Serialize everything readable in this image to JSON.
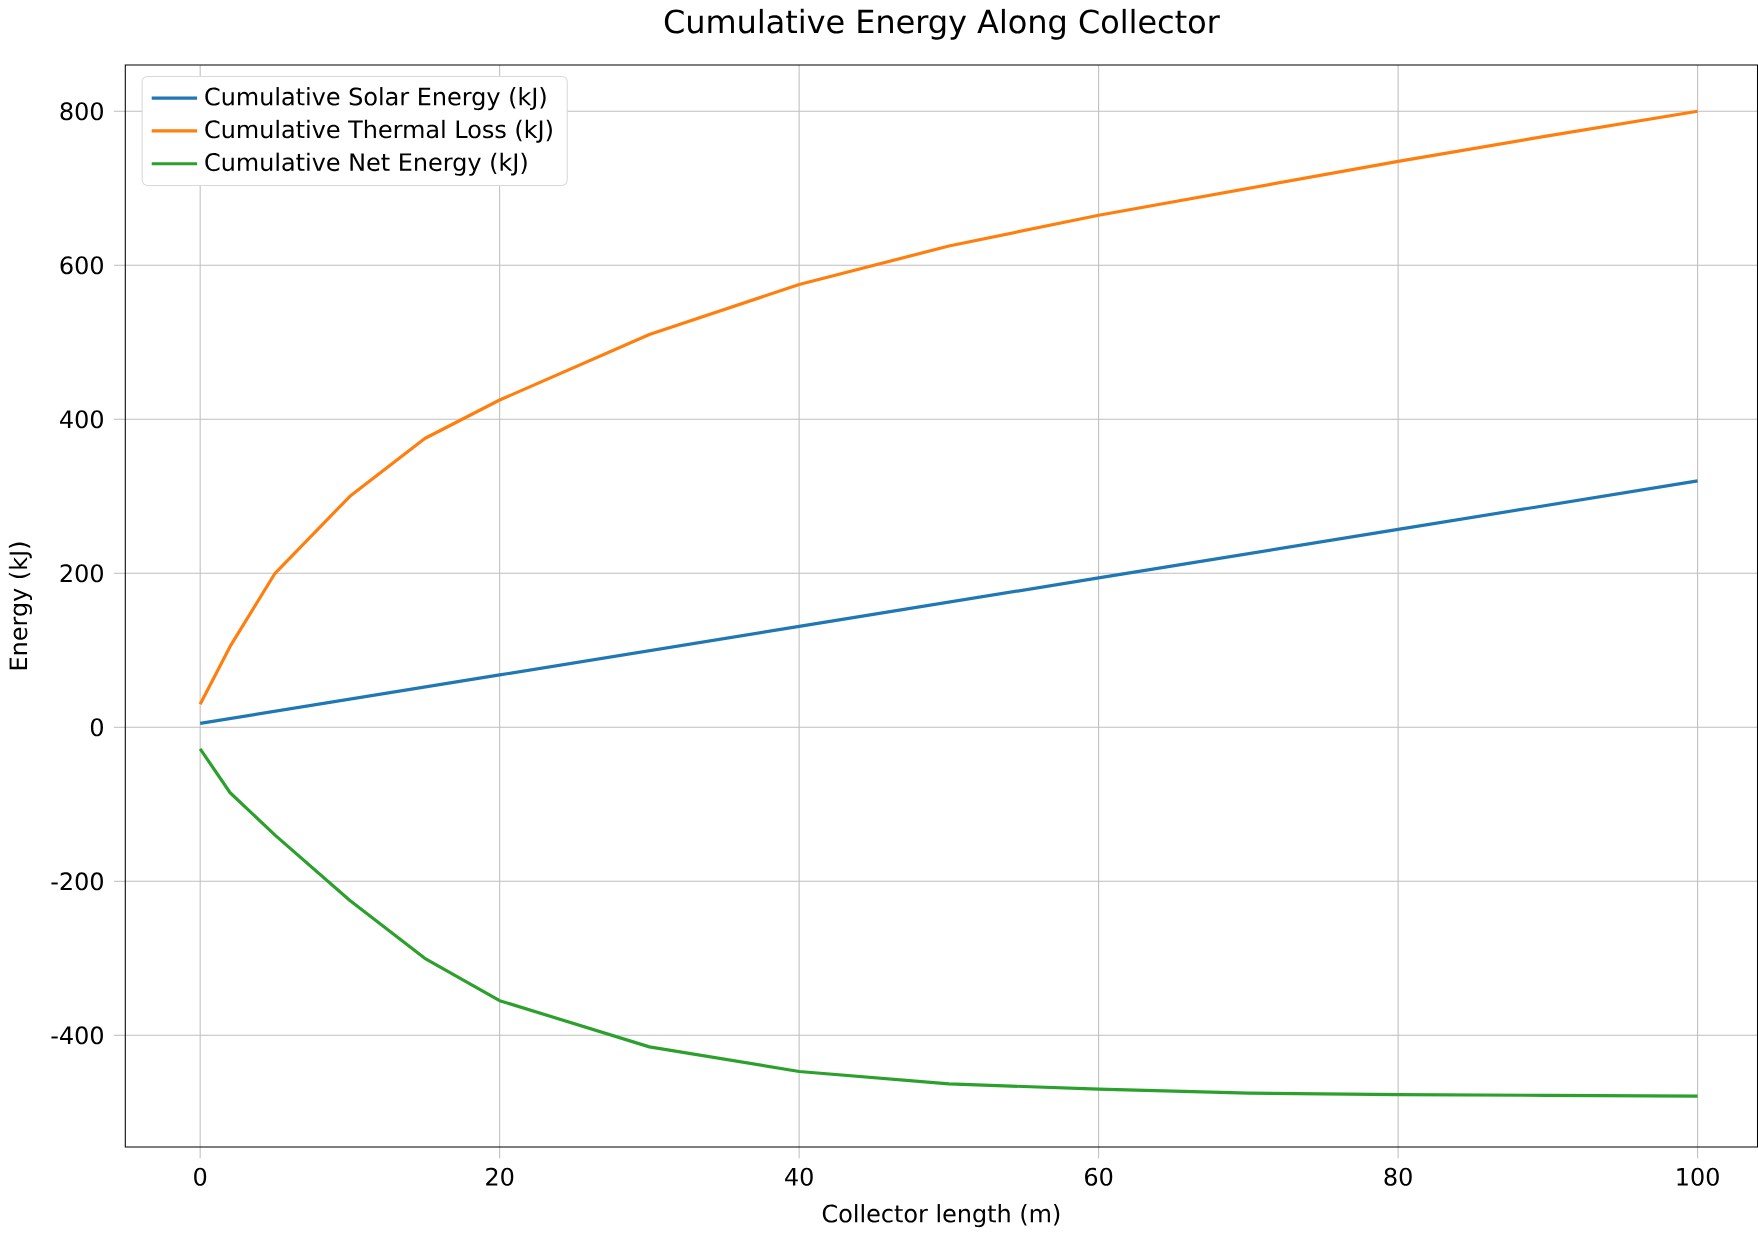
{
  "chart_data": {
    "type": "line",
    "title": "Cumulative Energy Along Collector",
    "xlabel": "Collector length (m)",
    "ylabel": "Energy (kJ)",
    "xlim": [
      -5,
      104
    ],
    "ylim": [
      -545,
      860
    ],
    "xticks": [
      0,
      20,
      40,
      60,
      80,
      100
    ],
    "yticks": [
      -400,
      -200,
      0,
      200,
      400,
      600,
      800
    ],
    "grid": true,
    "legend": "top left",
    "series": [
      {
        "name": "Cumulative Solar Energy (kJ)",
        "color": "#1f77b4",
        "x": [
          0,
          20,
          40,
          60,
          80,
          100
        ],
        "values": [
          5,
          68,
          131,
          194,
          257,
          320
        ]
      },
      {
        "name": "Cumulative Thermal Loss (kJ)",
        "color": "#ff7f0e",
        "x": [
          0,
          2,
          5,
          10,
          15,
          20,
          30,
          40,
          50,
          60,
          70,
          80,
          90,
          100
        ],
        "values": [
          30,
          105,
          200,
          300,
          375,
          425,
          510,
          575,
          625,
          665,
          700,
          735,
          768,
          800
        ]
      },
      {
        "name": "Cumulative Net Energy (kJ)",
        "color": "#2ca02c",
        "x": [
          0,
          2,
          5,
          10,
          15,
          20,
          30,
          40,
          50,
          60,
          70,
          80,
          90,
          100
        ],
        "values": [
          -28,
          -85,
          -140,
          -225,
          -300,
          -355,
          -415,
          -447,
          -463,
          -470,
          -475,
          -477,
          -478,
          -479
        ]
      }
    ]
  }
}
